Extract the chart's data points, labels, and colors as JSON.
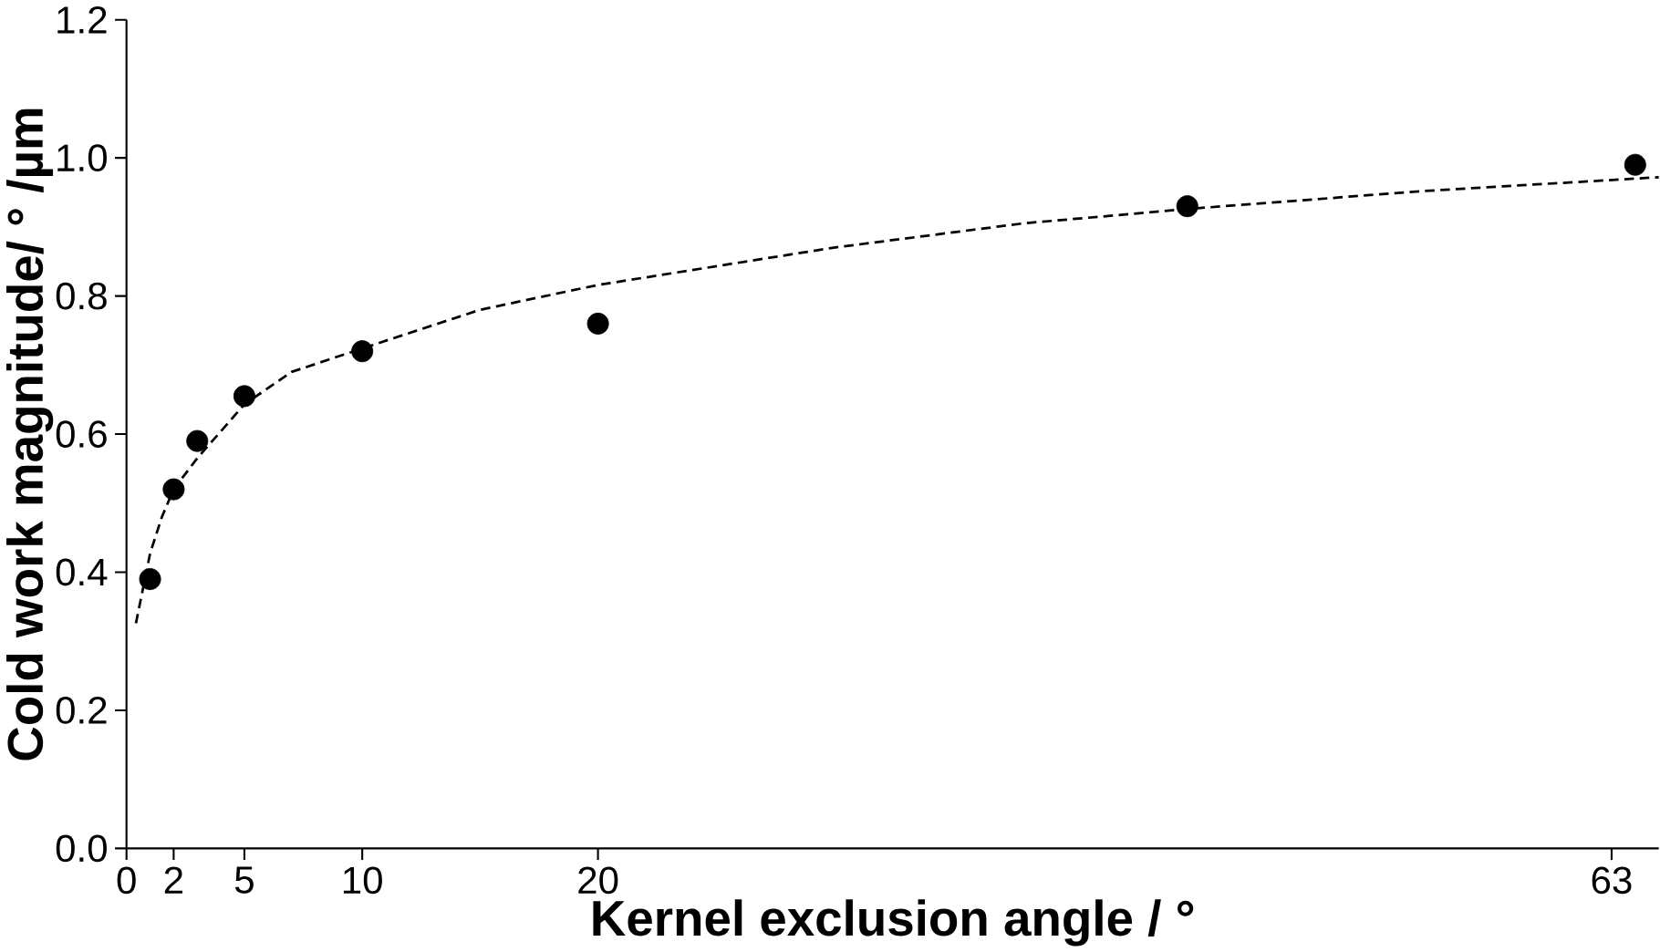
{
  "chart_data": {
    "type": "scatter",
    "xlabel": "Kernel exclusion angle / °",
    "ylabel": "Cold work magnitude/ ° /µm",
    "xlim": [
      0,
      65
    ],
    "ylim": [
      0,
      1.2
    ],
    "xticks": [
      0,
      2,
      5,
      10,
      20,
      63
    ],
    "yticks": [
      {
        "value": 0,
        "label": "0.0"
      },
      {
        "value": 0.2,
        "label": "0.2"
      },
      {
        "value": 0.4,
        "label": "0.4"
      },
      {
        "value": 0.6,
        "label": "0.6"
      },
      {
        "value": 0.8,
        "label": "0.8"
      },
      {
        "value": 1.0,
        "label": "1.0"
      },
      {
        "value": 1.2,
        "label": "1.2"
      }
    ],
    "series": [
      {
        "color": "#000000",
        "marker": "circle",
        "x": [
          1,
          2,
          3,
          5,
          10,
          20,
          45,
          64
        ],
        "values": [
          0.39,
          0.52,
          0.59,
          0.655,
          0.72,
          0.76,
          0.93,
          0.99
        ]
      },
      {
        "type": "line",
        "color": "#000000",
        "marker": "none",
        "line_style": "dashed",
        "x": [
          0.4,
          1,
          1.5,
          2,
          3,
          5,
          7,
          10,
          15,
          20,
          30,
          38,
          45,
          55,
          65
        ],
        "values": [
          0.326,
          0.427,
          0.48,
          0.52,
          0.565,
          0.643,
          0.69,
          0.724,
          0.78,
          0.816,
          0.87,
          0.905,
          0.926,
          0.952,
          0.972
        ]
      }
    ]
  }
}
